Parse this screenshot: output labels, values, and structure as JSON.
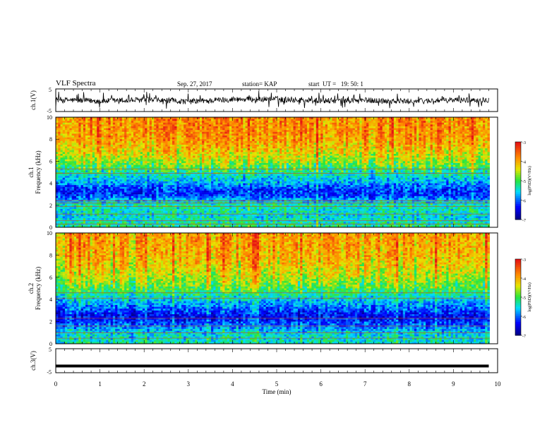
{
  "header": {
    "title": "VLF Spectra",
    "date": "Sep. 27, 2017",
    "station": "station= KAP",
    "start": "start  UT =   19: 50: 1"
  },
  "chart_data": [
    {
      "type": "line",
      "title": "",
      "ylabel": "ch.1(V)",
      "ylim": [
        -5,
        5
      ],
      "xlim": [
        0,
        10
      ],
      "y_ticks": [
        "5",
        "-5"
      ],
      "trend": {
        "x": [
          0,
          1,
          2,
          3,
          4,
          5,
          6,
          7,
          8,
          9,
          9.8
        ],
        "y": [
          0.3,
          -0.4,
          0.2,
          -0.6,
          0.4,
          0.5,
          -0.3,
          0.0,
          -0.5,
          0.1,
          0.2
        ]
      },
      "noise_amplitude": 2.5
    },
    {
      "type": "heatmap",
      "ylabel": "ch.1\nFrequency (kHz)",
      "ylim": [
        0,
        10
      ],
      "xlim": [
        0,
        10
      ],
      "y_ticks": [
        "0",
        "2",
        "4",
        "6",
        "8",
        "10"
      ],
      "colorbar": {
        "label": "log(PSD)(V²/Hz)",
        "ticks": [
          "-3",
          "-4",
          "-5",
          "-6",
          "-7"
        ],
        "range": [
          -7,
          -3
        ]
      },
      "profile": {
        "freq_khz": [
          0,
          1,
          2,
          2.5,
          3,
          3.5,
          4,
          5,
          6,
          7,
          8,
          9,
          10
        ],
        "log_psd": [
          -5.2,
          -5.5,
          -5.3,
          -5.8,
          -6.3,
          -6.2,
          -5.8,
          -5.3,
          -4.6,
          -4.2,
          -3.9,
          -3.8,
          -3.8
        ]
      },
      "band_lines_khz": [
        0.3,
        0.6,
        1.2,
        1.9,
        2.2,
        2.4,
        4.9,
        5.3
      ]
    },
    {
      "type": "heatmap",
      "ylabel": "ch.2\nFrequency (kHz)",
      "ylim": [
        0,
        10
      ],
      "xlim": [
        0,
        10
      ],
      "y_ticks": [
        "0",
        "2",
        "4",
        "6",
        "8",
        "10"
      ],
      "colorbar": {
        "label": "log(PSD)(V²/Hz)",
        "ticks": [
          "-3",
          "-4",
          "-5",
          "-6",
          "-7"
        ],
        "range": [
          -7,
          -3
        ]
      },
      "profile": {
        "freq_khz": [
          0,
          1,
          2,
          2.5,
          3,
          4,
          5,
          6,
          7,
          8,
          9,
          10
        ],
        "log_psd": [
          -5.4,
          -5.6,
          -6.3,
          -6.5,
          -6.2,
          -5.6,
          -5.0,
          -4.6,
          -4.3,
          -4.1,
          -4.0,
          -4.0
        ]
      },
      "band_lines_khz": [
        0.5,
        1.0,
        1.6,
        2.3,
        4.1,
        4.6
      ]
    },
    {
      "type": "line",
      "ylabel": "ch.3(V)",
      "ylim": [
        -5,
        5
      ],
      "xlim": [
        0,
        10
      ],
      "y_ticks": [
        "5",
        "-5"
      ],
      "x_ticks": [
        "0",
        "1",
        "2",
        "3",
        "4",
        "5",
        "6",
        "7",
        "8",
        "9",
        "10"
      ],
      "xlabel": "Time  (min)",
      "series": [
        {
          "x": [
            0,
            9.8
          ],
          "y": [
            -2.2,
            -2.2
          ]
        }
      ]
    }
  ]
}
